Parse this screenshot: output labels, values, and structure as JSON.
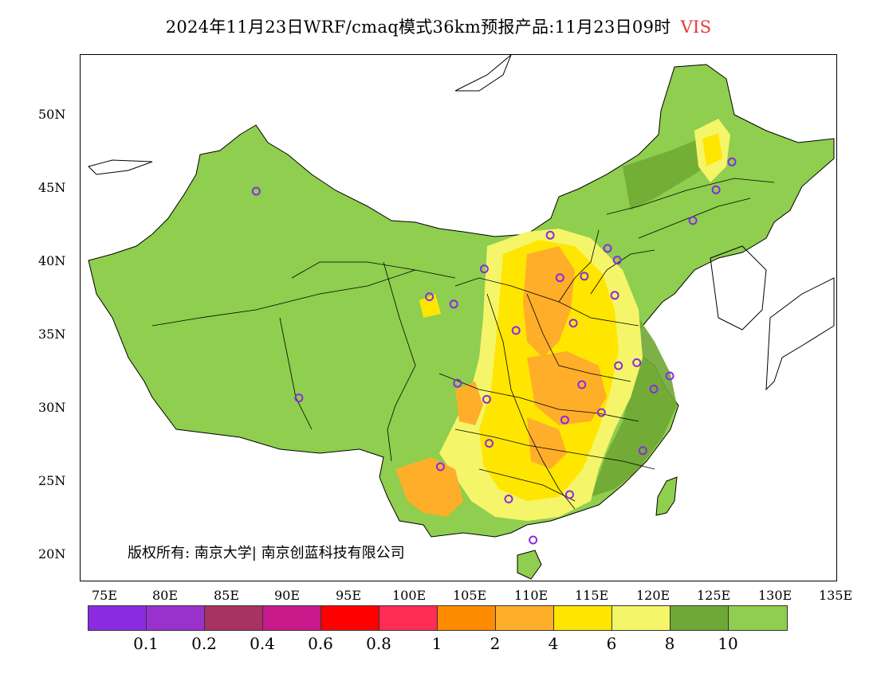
{
  "title": {
    "main": "2024年11月23日WRF/cmaq模式36km预报产品:11月23日09时",
    "variable": "VIS"
  },
  "axes": {
    "lat_labels": [
      "50N",
      "45N",
      "40N",
      "35N",
      "30N",
      "25N",
      "20N"
    ],
    "lon_labels": [
      "75E",
      "80E",
      "85E",
      "90E",
      "95E",
      "100E",
      "105E",
      "110E",
      "115E",
      "120E",
      "125E",
      "130E",
      "135E"
    ]
  },
  "copyright": "版权所有: 南京大学| 南京创蓝科技有限公司",
  "legend": {
    "colors": [
      "#8c2be2",
      "#9932cc",
      "#a83262",
      "#c8188a",
      "#ff0000",
      "#ff2d55",
      "#ff8c00",
      "#ffae2a",
      "#ffe600",
      "#f5f56a",
      "#6fa834",
      "#8fce4e"
    ],
    "labels": [
      "0.1",
      "0.2",
      "0.4",
      "0.6",
      "0.8",
      "1",
      "2",
      "4",
      "6",
      "8",
      "10"
    ]
  },
  "colors": {
    "land_high_vis": "#8fce4e",
    "dark_green": "#6fa834",
    "light_yellow": "#f5f56a",
    "yellow": "#ffe600",
    "orange": "#ffae2a",
    "title_var": "#e8383a",
    "station_marker": "#8a2be2"
  },
  "chart_data": {
    "type": "heatmap",
    "title": "2024年11月23日WRF/cmaq模式36km预报产品:11月23日09时 VIS",
    "variable": "VIS",
    "region": "China",
    "lat_range": [
      18,
      54
    ],
    "lon_range": [
      73,
      135
    ],
    "legend_levels": [
      0.1,
      0.2,
      0.4,
      0.6,
      0.8,
      1,
      2,
      4,
      6,
      8,
      10
    ],
    "stations": [
      {
        "lon": 87.6,
        "lat": 43.8
      },
      {
        "lon": 91.1,
        "lat": 29.7
      },
      {
        "lon": 101.8,
        "lat": 36.6
      },
      {
        "lon": 103.8,
        "lat": 36.1
      },
      {
        "lon": 106.3,
        "lat": 38.5
      },
      {
        "lon": 111.7,
        "lat": 40.8
      },
      {
        "lon": 116.4,
        "lat": 39.9
      },
      {
        "lon": 117.2,
        "lat": 39.1
      },
      {
        "lon": 114.5,
        "lat": 38.0
      },
      {
        "lon": 112.5,
        "lat": 37.9
      },
      {
        "lon": 117.0,
        "lat": 36.7
      },
      {
        "lon": 113.6,
        "lat": 34.8
      },
      {
        "lon": 108.9,
        "lat": 34.3
      },
      {
        "lon": 104.1,
        "lat": 30.7
      },
      {
        "lon": 106.5,
        "lat": 29.6
      },
      {
        "lon": 106.7,
        "lat": 26.6
      },
      {
        "lon": 102.7,
        "lat": 25.0
      },
      {
        "lon": 108.3,
        "lat": 22.8
      },
      {
        "lon": 113.3,
        "lat": 23.1
      },
      {
        "lon": 110.3,
        "lat": 20.0
      },
      {
        "lon": 112.9,
        "lat": 28.2
      },
      {
        "lon": 115.9,
        "lat": 28.7
      },
      {
        "lon": 114.3,
        "lat": 30.6
      },
      {
        "lon": 117.3,
        "lat": 31.9
      },
      {
        "lon": 118.8,
        "lat": 32.1
      },
      {
        "lon": 120.2,
        "lat": 30.3
      },
      {
        "lon": 121.5,
        "lat": 31.2
      },
      {
        "lon": 119.3,
        "lat": 26.1
      },
      {
        "lon": 123.4,
        "lat": 41.8
      },
      {
        "lon": 125.3,
        "lat": 43.9
      },
      {
        "lon": 126.6,
        "lat": 45.8
      }
    ]
  }
}
